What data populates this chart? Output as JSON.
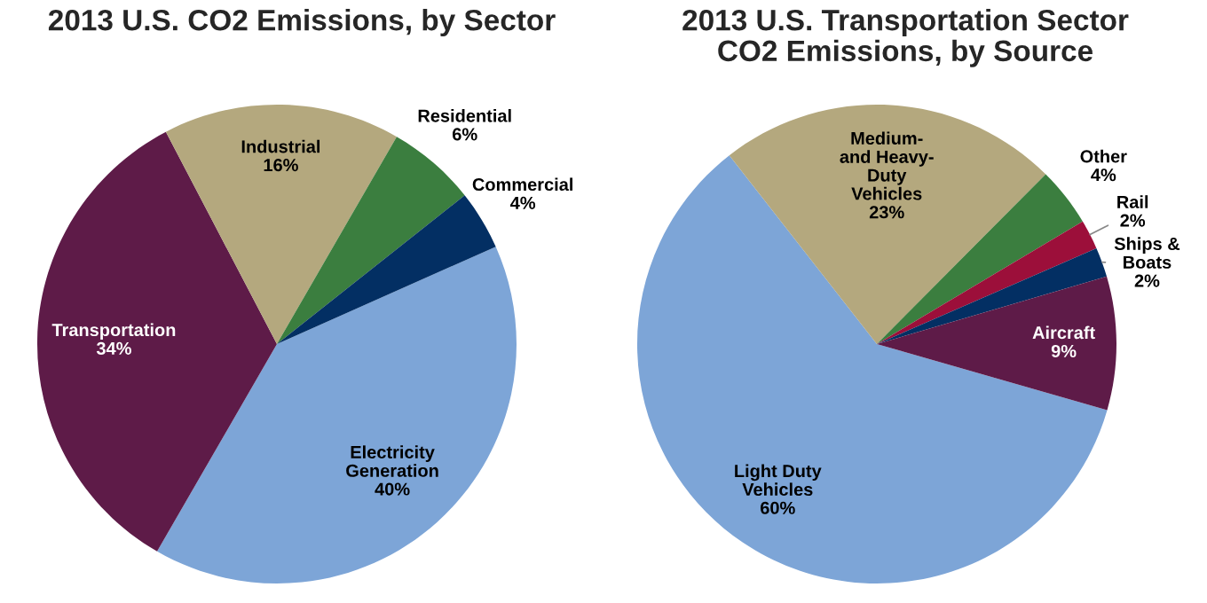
{
  "chart_data": [
    {
      "type": "pie",
      "title": "2013 U.S. CO2 Emissions, by Sector",
      "categories": [
        "Electricity\nGeneration",
        "Transportation",
        "Industrial",
        "Residential",
        "Commercial"
      ],
      "values": [
        40,
        34,
        16,
        6,
        4
      ],
      "value_labels": [
        "40%",
        "34%",
        "16%",
        "6%",
        "4%"
      ],
      "colors": [
        "#7da5d7",
        "#5e1b48",
        "#b4a87e",
        "#3b7e3f",
        "#032f63"
      ]
    },
    {
      "type": "pie",
      "title": "2013 U.S. Transportation Sector\nCO2 Emissions, by Source",
      "categories": [
        "Light Duty\nVehicles",
        "Medium-\nand Heavy-\nDuty\nVehicles",
        "Other",
        "Rail",
        "Ships &\nBoats",
        "Aircraft"
      ],
      "values": [
        60,
        23,
        4,
        2,
        2,
        9
      ],
      "value_labels": [
        "60%",
        "23%",
        "4%",
        "2%",
        "2%",
        "9%"
      ],
      "colors": [
        "#7da5d7",
        "#b4a87e",
        "#3b7e3f",
        "#9c0f3a",
        "#032f63",
        "#5e1b48"
      ]
    }
  ]
}
